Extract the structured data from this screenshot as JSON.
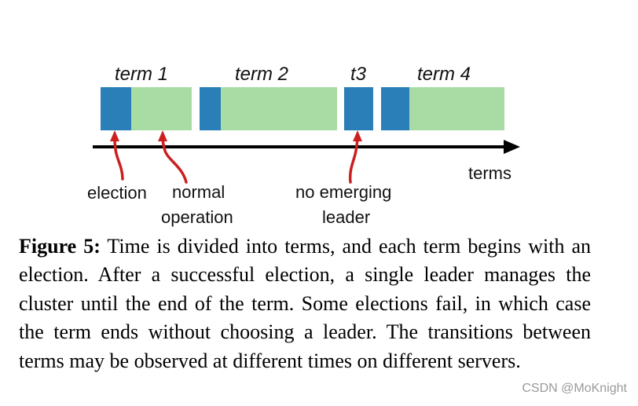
{
  "colors": {
    "election": "#2a7fb8",
    "normal": "#a8dca4",
    "arrow": "#cc1f1f",
    "axis": "#000000"
  },
  "terms": [
    {
      "label": "term 1",
      "election_fraction": 0.33
    },
    {
      "label": "term 2",
      "election_fraction": 0.15
    },
    {
      "label": "t3",
      "election_fraction": 1.0
    },
    {
      "label": "term 4",
      "election_fraction": 0.23
    }
  ],
  "axis_label": "terms",
  "annotations": {
    "election": "election",
    "normal_line1": "normal",
    "normal_line2": "operation",
    "no_leader_line1": "no emerging",
    "no_leader_line2": "leader"
  },
  "caption": {
    "figure_number": "Figure 5:",
    "text": "Time is divided into terms, and each term begins with an election. After a successful election, a single leader manages the cluster until the end of the term. Some elections fail, in which case the term ends without choosing a leader. The transitions between terms may be observed at different times on different servers."
  },
  "watermark": "CSDN @MoKnight"
}
